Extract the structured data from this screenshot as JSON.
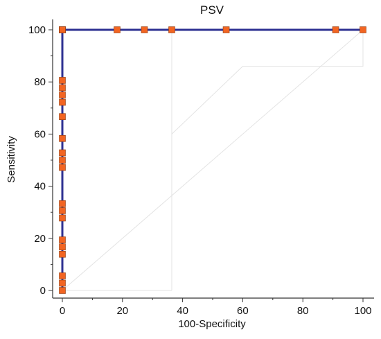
{
  "chart_data": {
    "type": "line",
    "title": "PSV",
    "xlabel": "100-Specificity",
    "ylabel": "Sensitivity",
    "xlim": [
      0,
      100
    ],
    "ylim": [
      0,
      100
    ],
    "xticks": [
      0,
      20,
      40,
      60,
      80,
      100
    ],
    "yticks": [
      0,
      20,
      40,
      60,
      80,
      100
    ],
    "grid": false,
    "legend": "none",
    "series": [
      {
        "line_color": "#2e3192",
        "marker_color": "#f26522",
        "x": [
          0,
          0,
          0,
          0,
          0,
          0,
          0,
          0,
          0,
          0,
          0,
          0,
          0,
          0,
          0,
          0,
          0,
          0,
          0,
          0,
          0,
          0,
          18.2,
          27.3,
          36.4,
          54.5,
          90.9,
          100
        ],
        "y": [
          0,
          2.8,
          5.6,
          13.9,
          16.7,
          19.4,
          27.8,
          30.6,
          33.3,
          47.2,
          50.0,
          52.8,
          58.3,
          66.7,
          72.2,
          75.0,
          77.8,
          80.6,
          100,
          100,
          100,
          100,
          100,
          100,
          100,
          100,
          100,
          100
        ]
      }
    ],
    "reference_diagonal": [
      [
        0,
        0
      ],
      [
        100,
        100
      ]
    ],
    "reference_color": "#e3e3e3"
  }
}
